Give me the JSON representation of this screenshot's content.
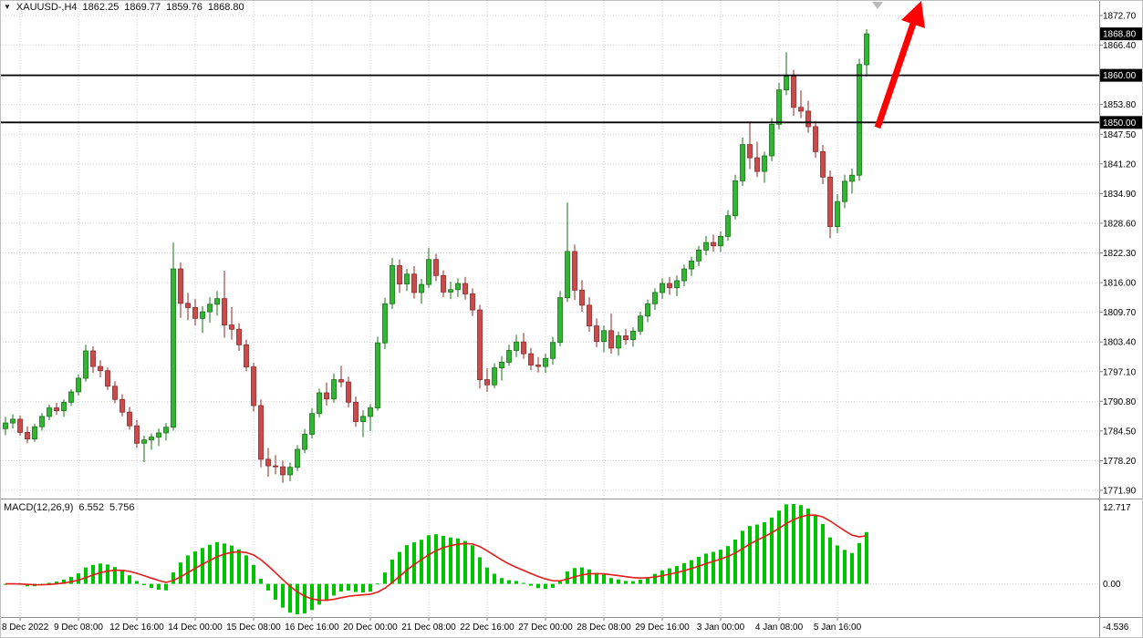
{
  "info": {
    "symbol_period": "XAUUSD-,H4",
    "open": "1862.25",
    "high": "1869.77",
    "low": "1859.76",
    "close": "1868.80"
  },
  "macd": {
    "name": "MACD(12,26,9)",
    "main_value": "6.552",
    "signal_value": "5.756",
    "scale_labels": [
      "12.717",
      "0.00",
      "-4.536"
    ]
  },
  "price_axis": {
    "top_price": 1872.7,
    "bottom_price": 1771.9,
    "grid_labels": [
      "1872.70",
      "1866.40",
      "1860.10",
      "1853.80",
      "1847.50",
      "1841.20",
      "1834.90",
      "1828.60",
      "1822.30",
      "1816.00",
      "1809.70",
      "1803.40",
      "1797.10",
      "1790.80",
      "1784.50",
      "1778.20",
      "1771.90"
    ],
    "boxes": [
      {
        "text": "1868.80",
        "price": 1868.8,
        "name": "current-price-box"
      },
      {
        "text": "1860.00",
        "price": 1860.0,
        "name": "level-1860-price-box"
      },
      {
        "text": "1850.00",
        "price": 1850.0,
        "name": "level-1850-price-box"
      }
    ]
  },
  "time_axis": {
    "first_label_bar": 2,
    "bar_step": 8,
    "labels": [
      "8 Dec 2022",
      "9 Dec 08:00",
      "12 Dec 16:00",
      "14 Dec 00:00",
      "15 Dec 08:00",
      "16 Dec 16:00",
      "20 Dec 00:00",
      "21 Dec 08:00",
      "22 Dec 16:00",
      "27 Dec 00:00",
      "28 Dec 08:00",
      "29 Dec 16:00",
      "3 Jan 00:00",
      "4 Jan 08:00",
      "5 Jan 16:00"
    ]
  },
  "annotation": {
    "type": "arrow-up",
    "arrow_color": "#ff0000"
  },
  "colors": {
    "bull": "#33b533",
    "bull_border": "#147214",
    "bear": "#c94b4b",
    "bear_border": "#8f2626",
    "grid": "#d2d2d2",
    "histogram": "#00c400",
    "signal": "#e41c1c",
    "level_line": "#000000"
  },
  "chart_data": {
    "type": "candlestick",
    "symbol": "XAUUSD-",
    "timeframe": "H4",
    "title": "XAUUSD- H4 with MACD(12,26,9)",
    "price_range": [
      1771.9,
      1872.7
    ],
    "current_price": 1868.8,
    "horizontal_levels": [
      1860.0,
      1850.0
    ],
    "indicator": {
      "name": "MACD",
      "params": [
        12,
        26,
        9
      ],
      "value": 6.552,
      "signal": 5.756,
      "scale": [
        12.717,
        0.0,
        -4.536
      ]
    },
    "candles_ohlc": [
      [
        1785.0,
        1787.5,
        1783.6,
        1786.2
      ],
      [
        1786.2,
        1788.0,
        1785.0,
        1787.0
      ],
      [
        1787.0,
        1787.8,
        1783.5,
        1784.2
      ],
      [
        1784.2,
        1785.5,
        1781.9,
        1782.8
      ],
      [
        1782.8,
        1786.0,
        1782.2,
        1785.4
      ],
      [
        1785.4,
        1788.3,
        1784.6,
        1787.6
      ],
      [
        1787.6,
        1790.1,
        1786.8,
        1789.4
      ],
      [
        1789.4,
        1790.5,
        1787.9,
        1788.8
      ],
      [
        1788.8,
        1791.2,
        1787.5,
        1790.6
      ],
      [
        1790.6,
        1793.4,
        1789.8,
        1792.8
      ],
      [
        1792.8,
        1796.5,
        1792.0,
        1795.7
      ],
      [
        1795.7,
        1802.8,
        1795.0,
        1801.5
      ],
      [
        1801.5,
        1802.5,
        1796.8,
        1798.2
      ],
      [
        1798.2,
        1799.5,
        1795.9,
        1797.3
      ],
      [
        1797.3,
        1798.0,
        1793.2,
        1794.0
      ],
      [
        1794.0,
        1795.1,
        1790.4,
        1791.2
      ],
      [
        1791.2,
        1792.3,
        1787.6,
        1788.5
      ],
      [
        1788.5,
        1789.6,
        1784.8,
        1785.6
      ],
      [
        1785.6,
        1786.8,
        1781.0,
        1781.9
      ],
      [
        1781.9,
        1783.5,
        1777.9,
        1782.6
      ],
      [
        1782.6,
        1784.0,
        1780.5,
        1783.2
      ],
      [
        1783.2,
        1785.0,
        1781.3,
        1784.1
      ],
      [
        1784.1,
        1786.2,
        1782.5,
        1785.3
      ],
      [
        1785.3,
        1824.5,
        1784.6,
        1818.9
      ],
      [
        1818.9,
        1820.3,
        1808.5,
        1811.6
      ],
      [
        1811.6,
        1813.8,
        1808.0,
        1810.7
      ],
      [
        1810.7,
        1812.5,
        1806.9,
        1808.4
      ],
      [
        1808.4,
        1811.0,
        1805.3,
        1809.8
      ],
      [
        1809.8,
        1812.9,
        1807.5,
        1811.4
      ],
      [
        1811.4,
        1814.2,
        1809.0,
        1812.6
      ],
      [
        1812.6,
        1818.5,
        1804.3,
        1807.0
      ],
      [
        1807.0,
        1810.8,
        1803.9,
        1806.1
      ],
      [
        1806.1,
        1807.4,
        1801.5,
        1802.8
      ],
      [
        1802.8,
        1803.9,
        1797.2,
        1798.1
      ],
      [
        1798.1,
        1799.0,
        1788.6,
        1789.9
      ],
      [
        1789.9,
        1791.2,
        1776.8,
        1778.5
      ],
      [
        1778.5,
        1780.9,
        1774.8,
        1777.1
      ],
      [
        1777.1,
        1779.4,
        1775.3,
        1776.9
      ],
      [
        1776.9,
        1778.2,
        1773.5,
        1775.2
      ],
      [
        1775.2,
        1777.8,
        1773.8,
        1776.8
      ],
      [
        1776.8,
        1781.5,
        1776.0,
        1780.6
      ],
      [
        1780.6,
        1784.9,
        1779.8,
        1783.8
      ],
      [
        1783.8,
        1789.3,
        1782.9,
        1788.2
      ],
      [
        1788.2,
        1793.5,
        1787.4,
        1792.6
      ],
      [
        1792.6,
        1794.8,
        1789.9,
        1791.3
      ],
      [
        1791.3,
        1796.7,
        1790.5,
        1795.4
      ],
      [
        1795.4,
        1798.3,
        1793.8,
        1794.9
      ],
      [
        1794.9,
        1796.0,
        1789.5,
        1790.6
      ],
      [
        1790.6,
        1791.8,
        1785.4,
        1786.5
      ],
      [
        1786.5,
        1788.9,
        1783.2,
        1787.6
      ],
      [
        1787.6,
        1790.2,
        1784.5,
        1789.4
      ],
      [
        1789.4,
        1804.5,
        1788.8,
        1803.2
      ],
      [
        1803.2,
        1812.8,
        1801.9,
        1811.5
      ],
      [
        1811.5,
        1821.2,
        1810.4,
        1819.6
      ],
      [
        1819.6,
        1820.9,
        1813.8,
        1815.7
      ],
      [
        1815.7,
        1818.9,
        1814.2,
        1817.8
      ],
      [
        1817.8,
        1819.5,
        1812.6,
        1813.9
      ],
      [
        1813.9,
        1816.8,
        1811.5,
        1815.6
      ],
      [
        1815.6,
        1823.4,
        1814.8,
        1820.9
      ],
      [
        1820.9,
        1822.1,
        1816.3,
        1817.5
      ],
      [
        1817.5,
        1818.6,
        1812.9,
        1814.0
      ],
      [
        1814.0,
        1816.2,
        1812.5,
        1814.5
      ],
      [
        1814.5,
        1816.9,
        1813.0,
        1815.8
      ],
      [
        1815.8,
        1817.2,
        1812.4,
        1813.6
      ],
      [
        1813.6,
        1814.8,
        1808.9,
        1810.2
      ],
      [
        1810.2,
        1811.3,
        1793.5,
        1795.4
      ],
      [
        1795.4,
        1797.8,
        1792.8,
        1794.3
      ],
      [
        1794.3,
        1798.9,
        1793.6,
        1797.9
      ],
      [
        1797.9,
        1800.4,
        1795.2,
        1799.1
      ],
      [
        1799.1,
        1802.8,
        1798.3,
        1801.6
      ],
      [
        1801.6,
        1804.9,
        1800.2,
        1803.4
      ],
      [
        1803.4,
        1805.3,
        1799.8,
        1800.9
      ],
      [
        1800.9,
        1802.1,
        1797.4,
        1798.5
      ],
      [
        1798.5,
        1800.2,
        1796.9,
        1798.2
      ],
      [
        1798.2,
        1800.9,
        1796.8,
        1799.9
      ],
      [
        1799.9,
        1804.5,
        1798.6,
        1803.3
      ],
      [
        1803.3,
        1814.2,
        1802.5,
        1812.8
      ],
      [
        1812.8,
        1833.0,
        1811.9,
        1822.6
      ],
      [
        1822.6,
        1824.1,
        1812.3,
        1814.4
      ],
      [
        1814.4,
        1816.5,
        1809.8,
        1811.2
      ],
      [
        1811.2,
        1812.9,
        1805.6,
        1806.8
      ],
      [
        1806.8,
        1808.4,
        1802.3,
        1803.5
      ],
      [
        1803.5,
        1806.9,
        1801.2,
        1805.8
      ],
      [
        1805.8,
        1809.4,
        1800.9,
        1802.1
      ],
      [
        1802.1,
        1805.6,
        1800.5,
        1804.7
      ],
      [
        1804.7,
        1806.2,
        1802.8,
        1803.9
      ],
      [
        1803.9,
        1806.5,
        1802.4,
        1805.7
      ],
      [
        1805.7,
        1809.8,
        1804.9,
        1808.9
      ],
      [
        1808.9,
        1812.4,
        1807.6,
        1811.5
      ],
      [
        1811.5,
        1814.8,
        1810.2,
        1813.9
      ],
      [
        1813.9,
        1816.9,
        1812.5,
        1815.8
      ],
      [
        1815.8,
        1817.2,
        1813.4,
        1814.9
      ],
      [
        1814.9,
        1817.5,
        1813.1,
        1816.4
      ],
      [
        1816.4,
        1819.8,
        1815.2,
        1818.9
      ],
      [
        1818.9,
        1821.5,
        1817.4,
        1820.6
      ],
      [
        1820.6,
        1823.8,
        1819.5,
        1822.9
      ],
      [
        1822.9,
        1825.9,
        1821.8,
        1824.5
      ],
      [
        1824.5,
        1826.2,
        1822.6,
        1823.8
      ],
      [
        1823.8,
        1826.9,
        1822.5,
        1825.8
      ],
      [
        1825.8,
        1831.4,
        1824.9,
        1830.2
      ],
      [
        1830.2,
        1838.9,
        1829.4,
        1837.6
      ],
      [
        1837.6,
        1846.8,
        1836.5,
        1845.3
      ],
      [
        1845.3,
        1850.2,
        1840.1,
        1842.5
      ],
      [
        1842.5,
        1845.9,
        1838.4,
        1839.6
      ],
      [
        1839.6,
        1843.8,
        1837.2,
        1842.9
      ],
      [
        1842.9,
        1850.9,
        1841.8,
        1849.6
      ],
      [
        1849.6,
        1858.4,
        1848.5,
        1856.9
      ],
      [
        1856.9,
        1864.9,
        1855.8,
        1859.8
      ],
      [
        1859.8,
        1861.2,
        1851.4,
        1853.2
      ],
      [
        1853.2,
        1856.8,
        1850.9,
        1852.4
      ],
      [
        1852.4,
        1854.6,
        1847.8,
        1849.1
      ],
      [
        1849.1,
        1850.3,
        1842.5,
        1843.8
      ],
      [
        1843.8,
        1845.2,
        1836.9,
        1838.4
      ],
      [
        1838.4,
        1839.8,
        1825.4,
        1827.9
      ],
      [
        1827.9,
        1834.8,
        1826.5,
        1833.2
      ],
      [
        1833.2,
        1838.9,
        1831.8,
        1837.5
      ],
      [
        1837.5,
        1840.2,
        1834.9,
        1838.8
      ],
      [
        1838.8,
        1863.5,
        1837.6,
        1862.3
      ],
      [
        1862.25,
        1869.77,
        1859.76,
        1868.8
      ]
    ]
  }
}
